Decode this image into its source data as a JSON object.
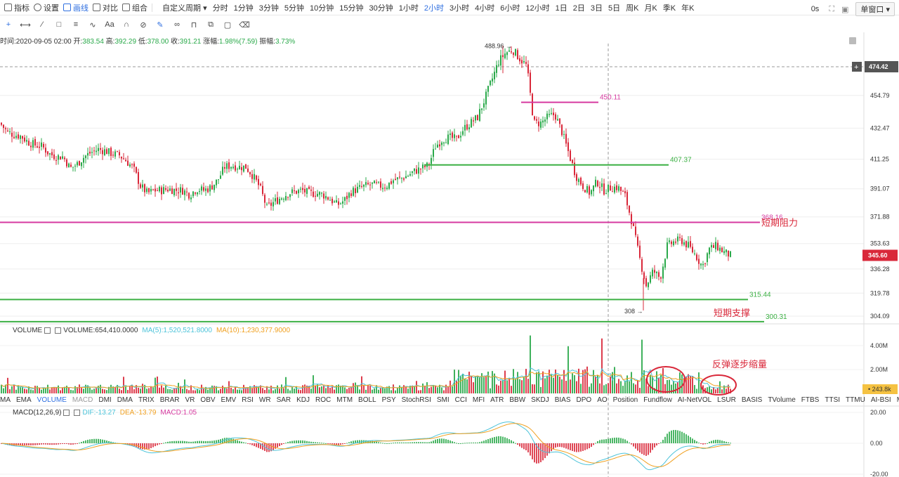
{
  "topbar": {
    "indicator": "指标",
    "settings": "设置",
    "draw": "画线",
    "compare": "对比",
    "combo": "组合",
    "custom_period": "自定义周期",
    "periods": [
      "分时",
      "1分钟",
      "3分钟",
      "5分钟",
      "10分钟",
      "15分钟",
      "30分钟",
      "1小时",
      "2小时",
      "3小时",
      "4小时",
      "6小时",
      "12小时",
      "1日",
      "2日",
      "3日",
      "5日",
      "周K",
      "月K",
      "季K",
      "年K"
    ],
    "active_period": "2小时",
    "latency": "0s",
    "window_mode": "单窗口"
  },
  "info": {
    "time_label": "时间:2020-09-05 02:00",
    "open_label": "开:",
    "open": "383.54",
    "high_label": "高:",
    "high": "392.29",
    "low_label": "低:",
    "low": "378.00",
    "close_label": "收:",
    "close": "391.21",
    "change_label": "涨幅:",
    "change": "1.98%(7.59)",
    "amp_label": "振幅:",
    "amp": "3.73%"
  },
  "volume_title": {
    "name": "VOLUME",
    "value": "VOLUME:654,410.0000",
    "ma5": "MA(5):1,520,521.8000",
    "ma10": "MA(10):1,230,377.9000"
  },
  "indicator_tabs": [
    "MA",
    "EMA",
    "VOLUME",
    "MACD",
    "DMI",
    "DMA",
    "TRIX",
    "BRAR",
    "VR",
    "OBV",
    "EMV",
    "RSI",
    "WR",
    "SAR",
    "KDJ",
    "ROC",
    "MTM",
    "BOLL",
    "PSY",
    "StochRSI",
    "SMI",
    "CCI",
    "MFI",
    "ATR",
    "BBW",
    "SKDJ",
    "BIAS",
    "DPO",
    "AO",
    "Position",
    "Fundflow",
    "AI-NetVOL",
    "LSUR",
    "BASIS",
    "TVolume",
    "FTBS",
    "TTSI",
    "TTMU",
    "AI-BSI",
    "MLR"
  ],
  "active_indicator": "VOLUME",
  "macd_title": {
    "name": "MACD(12,26,9)",
    "dif": "DIF:-13.27",
    "dea": "DEA:-13.79",
    "macd": "MACD:1.05"
  },
  "colors": {
    "up": "#2aa94a",
    "down": "#d9283a",
    "resistance": "#d63aa0",
    "support": "#3cb044",
    "ma5": "#4cc3d9",
    "ma10": "#f0a020",
    "accent": "#2f6fe0"
  },
  "chart_data": [
    {
      "type": "candlestick",
      "interval": "2小时",
      "y_ticks": [
        "474.42",
        "454.79",
        "432.47",
        "411.25",
        "391.07",
        "371.88",
        "353.63",
        "336.28",
        "319.78",
        "304.09"
      ],
      "ylim": [
        300,
        495
      ],
      "last_price": "345.60",
      "crosshair_price": "474.42",
      "annotations": [
        {
          "text": "488.96",
          "kind": "high_marker",
          "value": 488.96
        },
        {
          "text": "308",
          "kind": "low_marker",
          "value": 308
        },
        {
          "text": "450.11",
          "kind": "hline",
          "value": 450.11,
          "color": "#d63aa0"
        },
        {
          "text": "407.37",
          "kind": "hline",
          "value": 407.37,
          "color": "#3cb044"
        },
        {
          "text": "368.16",
          "kind": "hline",
          "value": 368.16,
          "color": "#d63aa0",
          "label": "短期阻力"
        },
        {
          "text": "315.44",
          "kind": "hline",
          "value": 315.44,
          "color": "#3cb044"
        },
        {
          "text": "300.31",
          "kind": "hline",
          "value": 300.31,
          "color": "#3cb044",
          "label": "短期支撑"
        }
      ],
      "close_path": [
        [
          0,
          436
        ],
        [
          10,
          430
        ],
        [
          20,
          428
        ],
        [
          30,
          427
        ],
        [
          40,
          423
        ],
        [
          50,
          421
        ],
        [
          60,
          420
        ],
        [
          70,
          415
        ],
        [
          80,
          413
        ],
        [
          90,
          413
        ],
        [
          100,
          405
        ],
        [
          110,
          408
        ],
        [
          120,
          413
        ],
        [
          130,
          416
        ],
        [
          140,
          418
        ],
        [
          150,
          417
        ],
        [
          160,
          415
        ],
        [
          170,
          414
        ],
        [
          180,
          410
        ],
        [
          190,
          405
        ],
        [
          200,
          393
        ],
        [
          210,
          388
        ],
        [
          220,
          390
        ],
        [
          230,
          390
        ],
        [
          240,
          391
        ],
        [
          250,
          390
        ],
        [
          260,
          390
        ],
        [
          270,
          387
        ],
        [
          280,
          391
        ],
        [
          290,
          390
        ],
        [
          300,
          392
        ],
        [
          310,
          397
        ],
        [
          320,
          406
        ],
        [
          330,
          407
        ],
        [
          340,
          406
        ],
        [
          350,
          406
        ],
        [
          360,
          400
        ],
        [
          370,
          392
        ],
        [
          380,
          378
        ],
        [
          390,
          382
        ],
        [
          400,
          385
        ],
        [
          410,
          388
        ],
        [
          420,
          389
        ],
        [
          430,
          390
        ],
        [
          440,
          388
        ],
        [
          450,
          388
        ],
        [
          460,
          387
        ],
        [
          470,
          384
        ],
        [
          480,
          380
        ],
        [
          490,
          383
        ],
        [
          500,
          389
        ],
        [
          510,
          391
        ],
        [
          520,
          393
        ],
        [
          530,
          394
        ],
        [
          540,
          393
        ],
        [
          550,
          393
        ],
        [
          560,
          397
        ],
        [
          570,
          398
        ],
        [
          580,
          400
        ],
        [
          590,
          403
        ],
        [
          600,
          405
        ],
        [
          610,
          407
        ],
        [
          620,
          420
        ],
        [
          630,
          425
        ],
        [
          640,
          426
        ],
        [
          650,
          425
        ],
        [
          660,
          432
        ],
        [
          670,
          436
        ],
        [
          680,
          440
        ],
        [
          690,
          452
        ],
        [
          700,
          465
        ],
        [
          710,
          478
        ],
        [
          720,
          484
        ],
        [
          730,
          486
        ],
        [
          740,
          480
        ],
        [
          750,
          475
        ],
        [
          760,
          436
        ],
        [
          770,
          436
        ],
        [
          780,
          440
        ],
        [
          790,
          442
        ],
        [
          800,
          430
        ],
        [
          810,
          415
        ],
        [
          820,
          400
        ],
        [
          830,
          393
        ],
        [
          840,
          388
        ],
        [
          850,
          396
        ],
        [
          860,
          390
        ],
        [
          870,
          392
        ],
        [
          880,
          392
        ],
        [
          890,
          386
        ],
        [
          900,
          368
        ],
        [
          910,
          345
        ],
        [
          920,
          325
        ],
        [
          930,
          335
        ],
        [
          940,
          330
        ],
        [
          950,
          352
        ],
        [
          960,
          355
        ],
        [
          970,
          356
        ],
        [
          980,
          352
        ],
        [
          990,
          346
        ],
        [
          1000,
          338
        ],
        [
          1010,
          350
        ],
        [
          1020,
          352
        ],
        [
          1030,
          348
        ],
        [
          1040,
          345.6
        ]
      ]
    },
    {
      "type": "bar",
      "name": "VOLUME",
      "y_ticks": [
        "4.00M",
        "2.00M"
      ],
      "last_value_label": "243.8k",
      "annotations": [
        {
          "text": "反弹逐步缩量"
        }
      ],
      "peaks_M": [
        {
          "x": 755,
          "v": 4.85
        },
        {
          "x": 808,
          "v": 3.95
        },
        {
          "x": 858,
          "v": 4.6
        },
        {
          "x": 915,
          "v": 4.5
        }
      ]
    },
    {
      "type": "bar+line",
      "name": "MACD(12,26,9)",
      "y_ticks": [
        "20.00",
        "0.00",
        "-20.00"
      ],
      "ylim": [
        -20,
        20
      ]
    }
  ]
}
